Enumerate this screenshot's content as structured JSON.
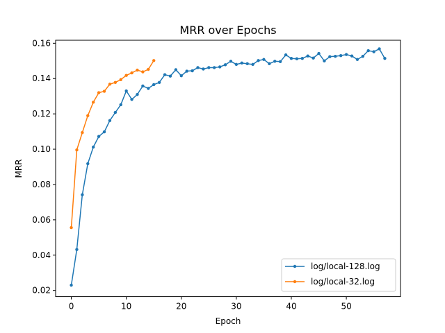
{
  "chart_data": {
    "type": "line",
    "title": "MRR over Epochs",
    "xlabel": "Epoch",
    "ylabel": "MRR",
    "xlim": [
      -2.85,
      59.85
    ],
    "ylim": [
      0.0165,
      0.1617
    ],
    "xticks": [
      0,
      10,
      20,
      30,
      40,
      50
    ],
    "yticks": [
      0.02,
      0.04,
      0.06,
      0.08,
      0.1,
      0.12,
      0.14,
      0.16
    ],
    "ytick_labels": [
      "0.02",
      "0.04",
      "0.06",
      "0.08",
      "0.10",
      "0.12",
      "0.14",
      "0.16"
    ],
    "grid": false,
    "legend_position": "lower-right",
    "series": [
      {
        "name": "log/local-128.log",
        "color": "#1f77b4",
        "x": [
          0,
          1,
          2,
          3,
          4,
          5,
          6,
          7,
          8,
          9,
          10,
          11,
          12,
          13,
          14,
          15,
          16,
          17,
          18,
          19,
          20,
          21,
          22,
          23,
          24,
          25,
          26,
          27,
          28,
          29,
          30,
          31,
          32,
          33,
          34,
          35,
          36,
          37,
          38,
          39,
          40,
          41,
          42,
          43,
          44,
          45,
          46,
          47,
          48,
          49,
          50,
          51,
          52,
          53,
          54,
          55,
          56,
          57
        ],
        "y": [
          0.023,
          0.0432,
          0.0742,
          0.0918,
          0.1012,
          0.1072,
          0.1098,
          0.1162,
          0.1208,
          0.1252,
          0.133,
          0.1282,
          0.131,
          0.1358,
          0.1344,
          0.1366,
          0.1378,
          0.1422,
          0.1414,
          0.145,
          0.1416,
          0.1442,
          0.1444,
          0.1462,
          0.1454,
          0.1462,
          0.1462,
          0.1466,
          0.1478,
          0.1498,
          0.148,
          0.1488,
          0.1484,
          0.148,
          0.1502,
          0.1508,
          0.1484,
          0.1498,
          0.1496,
          0.1534,
          0.1514,
          0.1512,
          0.1514,
          0.1528,
          0.1516,
          0.1542,
          0.15,
          0.1524,
          0.1526,
          0.153,
          0.1536,
          0.1528,
          0.1508,
          0.1526,
          0.1558,
          0.1552,
          0.1568,
          0.1514
        ]
      },
      {
        "name": "log/local-32.log",
        "color": "#ff7f0e",
        "x": [
          0,
          1,
          2,
          3,
          4,
          5,
          6,
          7,
          8,
          9,
          10,
          11,
          12,
          13,
          14,
          15
        ],
        "y": [
          0.0556,
          0.0996,
          0.1094,
          0.119,
          0.1266,
          0.132,
          0.1328,
          0.1368,
          0.1378,
          0.1394,
          0.1418,
          0.1432,
          0.1448,
          0.1438,
          0.1452,
          0.1502
        ]
      }
    ]
  }
}
